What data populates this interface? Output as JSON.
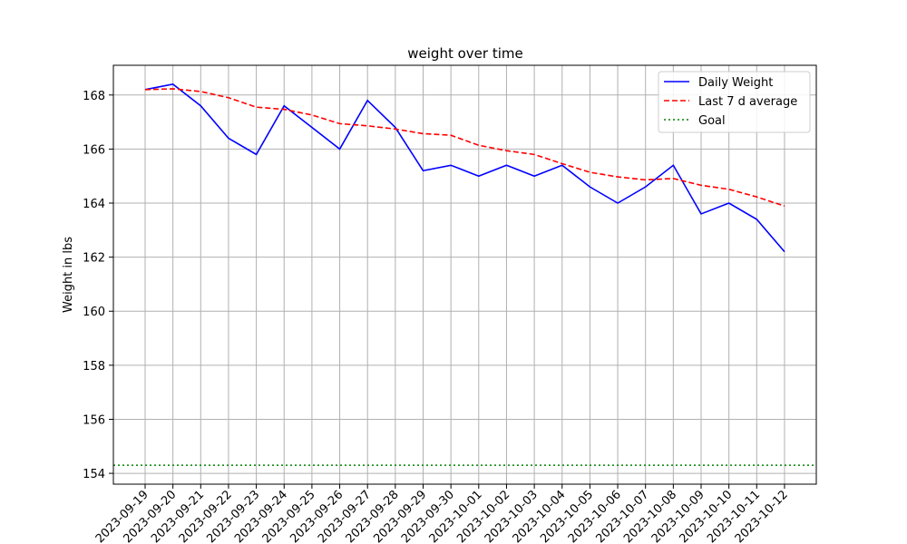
{
  "chart_data": {
    "type": "line",
    "title": "weight over time",
    "xlabel": "",
    "ylabel": "Weight in lbs",
    "x": [
      "2023-09-19",
      "2023-09-20",
      "2023-09-21",
      "2023-09-22",
      "2023-09-23",
      "2023-09-24",
      "2023-09-25",
      "2023-09-26",
      "2023-09-27",
      "2023-09-28",
      "2023-09-29",
      "2023-09-30",
      "2023-10-01",
      "2023-10-02",
      "2023-10-03",
      "2023-10-04",
      "2023-10-05",
      "2023-10-06",
      "2023-10-07",
      "2023-10-08",
      "2023-10-09",
      "2023-10-10",
      "2023-10-11",
      "2023-10-12"
    ],
    "series": [
      {
        "name": "Daily Weight",
        "color": "#0000ff",
        "style": "solid",
        "values": [
          168.2,
          168.4,
          167.6,
          166.4,
          165.8,
          167.6,
          166.8,
          166.0,
          167.8,
          166.8,
          165.2,
          165.4,
          165.0,
          165.4,
          165.0,
          165.4,
          164.6,
          164.0,
          164.6,
          165.4,
          163.6,
          164.0,
          163.4,
          162.2
        ]
      },
      {
        "name": "Last 7 d average",
        "color": "#ff0000",
        "style": "dashed",
        "values": [
          168.2,
          168.23,
          168.13,
          167.9,
          167.55,
          167.47,
          167.26,
          166.94,
          166.86,
          166.74,
          166.57,
          166.51,
          166.14,
          165.94,
          165.8,
          165.46,
          165.14,
          164.97,
          164.86,
          164.91,
          164.66,
          164.51,
          164.23,
          163.89
        ]
      },
      {
        "name": "Goal",
        "color": "#008000",
        "style": "dotted",
        "y": 154.3
      }
    ],
    "yticks": [
      154,
      156,
      158,
      160,
      162,
      164,
      166,
      168
    ],
    "ylim": [
      153.6,
      169.1
    ],
    "grid": true,
    "legend": "top-right"
  }
}
